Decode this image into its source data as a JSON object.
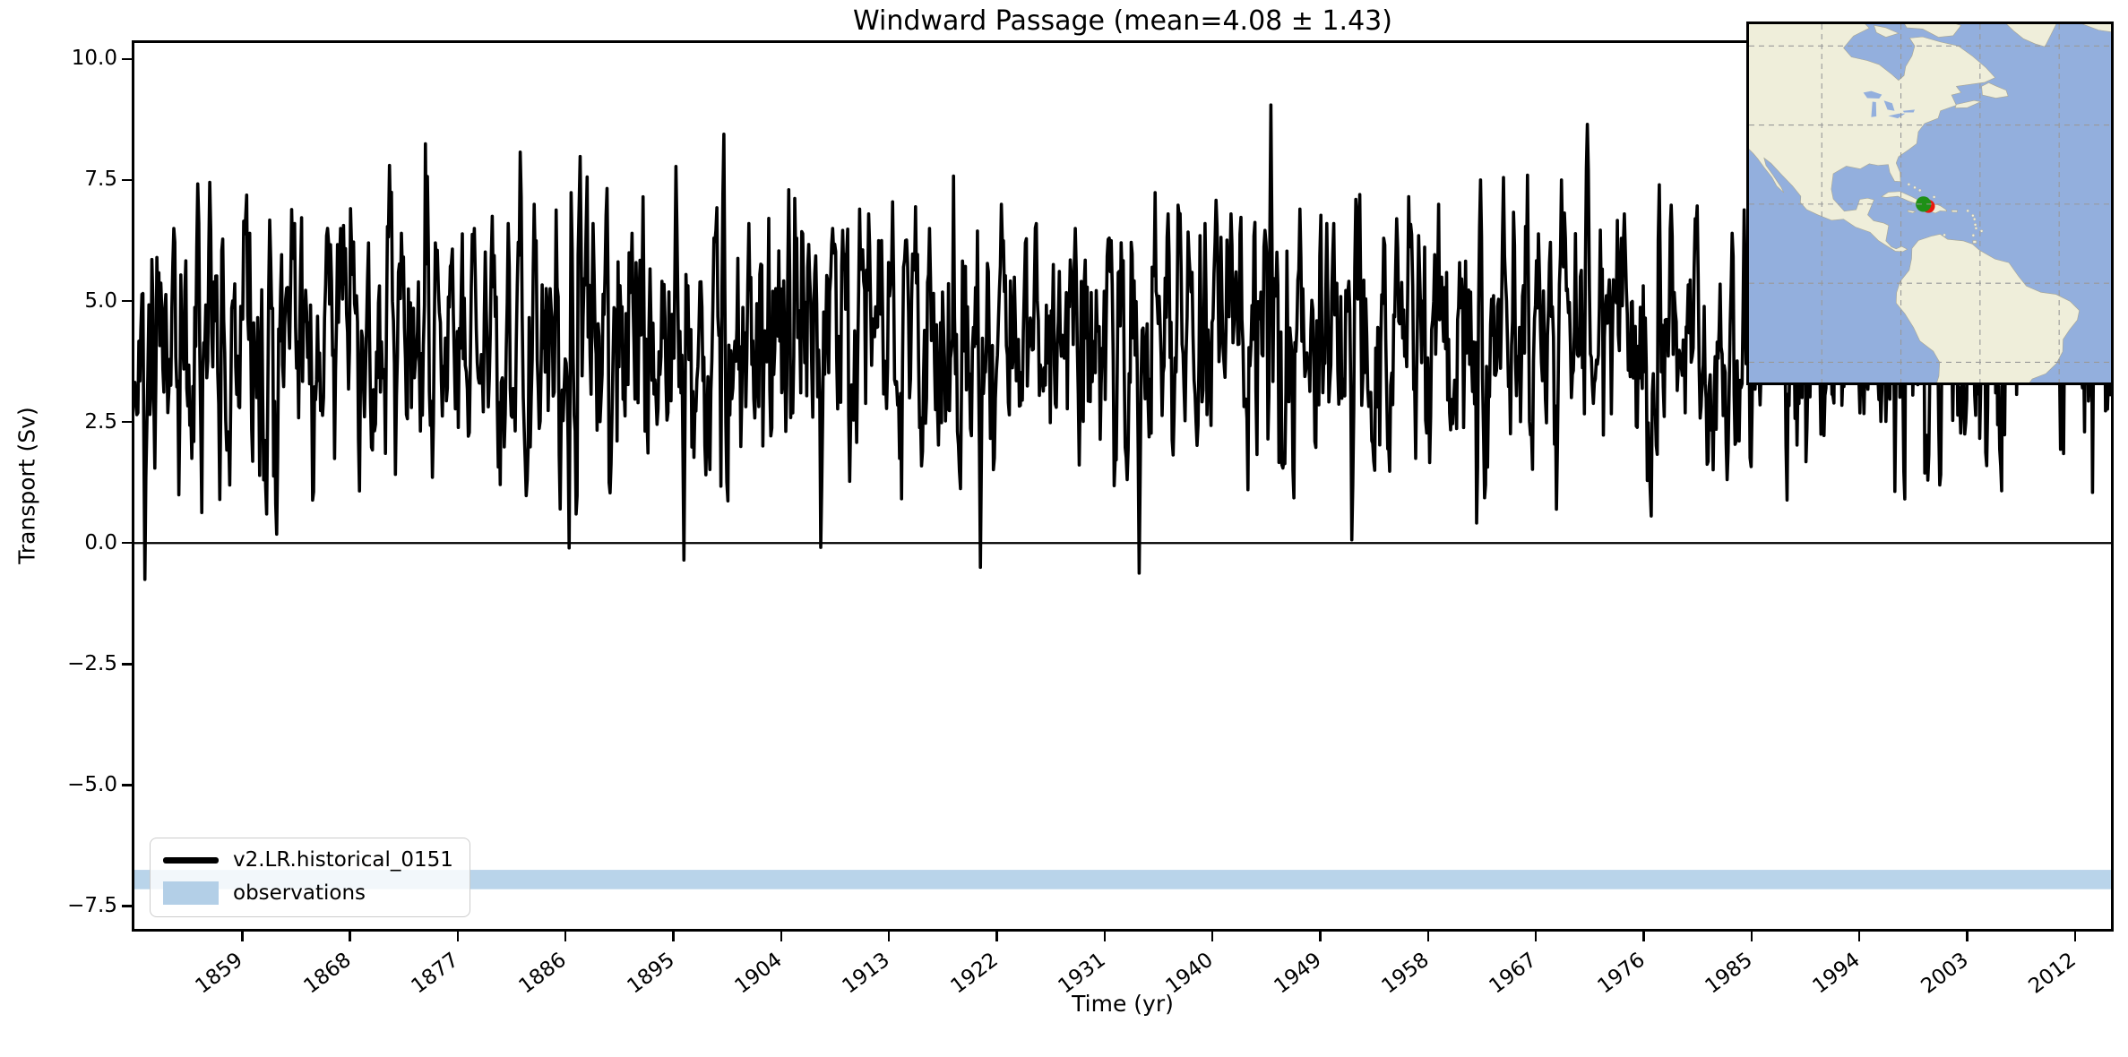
{
  "title": "Windward Passage (mean=4.08 ± 1.43)",
  "axes": {
    "xlabel": "Time (yr)",
    "ylabel": "Transport (Sv)",
    "xlim": [
      1850,
      2015
    ],
    "ylim": [
      -7.97,
      10.33
    ],
    "xticks": [
      {
        "v": 1859,
        "label": "1859"
      },
      {
        "v": 1868,
        "label": "1868"
      },
      {
        "v": 1877,
        "label": "1877"
      },
      {
        "v": 1886,
        "label": "1886"
      },
      {
        "v": 1895,
        "label": "1895"
      },
      {
        "v": 1904,
        "label": "1904"
      },
      {
        "v": 1913,
        "label": "1913"
      },
      {
        "v": 1922,
        "label": "1922"
      },
      {
        "v": 1931,
        "label": "1931"
      },
      {
        "v": 1940,
        "label": "1940"
      },
      {
        "v": 1949,
        "label": "1949"
      },
      {
        "v": 1958,
        "label": "1958"
      },
      {
        "v": 1967,
        "label": "1967"
      },
      {
        "v": 1976,
        "label": "1976"
      },
      {
        "v": 1985,
        "label": "1985"
      },
      {
        "v": 1994,
        "label": "1994"
      },
      {
        "v": 2003,
        "label": "2003"
      },
      {
        "v": 2012,
        "label": "2012"
      }
    ],
    "yticks": [
      {
        "v": 10.0,
        "label": "10.0"
      },
      {
        "v": 7.5,
        "label": "7.5"
      },
      {
        "v": 5.0,
        "label": "5.0"
      },
      {
        "v": 2.5,
        "label": "2.5"
      },
      {
        "v": 0.0,
        "label": "0.0"
      },
      {
        "v": -2.5,
        "label": "−2.5"
      },
      {
        "v": -5.0,
        "label": "−5.0"
      },
      {
        "v": -7.5,
        "label": "−7.5"
      }
    ]
  },
  "legend": {
    "items": [
      {
        "label": "v2.LR.historical_0151",
        "swatch": "line",
        "color": "#000000"
      },
      {
        "label": "observations",
        "swatch": "patch",
        "color": "#b3cfe7"
      }
    ]
  },
  "chart_data": {
    "type": "line",
    "title": "Windward Passage (mean=4.08 ± 1.43)",
    "xlabel": "Time (yr)",
    "ylabel": "Transport (Sv)",
    "xlim": [
      1850,
      2015
    ],
    "ylim": [
      -7.97,
      10.33
    ],
    "grid": false,
    "legend_position": "lower left",
    "series": [
      {
        "name": "v2.LR.historical_0151",
        "color": "#000000",
        "linewidth": 3.6,
        "sampling": "monthly",
        "x_start": 1850,
        "x_end": 2015,
        "mean": 4.08,
        "std": 1.43,
        "generator": {
          "seed": 1337,
          "ar": 0.45,
          "sigma": 1.05,
          "seasonal_min": 0.4,
          "seasonal_max": 1.4
        },
        "notable_extremes": [
          [
            1850.9,
            -0.75
          ],
          [
            1851.9,
            5.9
          ],
          [
            1853.3,
            6.5
          ],
          [
            1855.3,
            7.42
          ],
          [
            1856.3,
            7.45
          ],
          [
            1857.1,
            0.9
          ],
          [
            1859.6,
            6.4
          ],
          [
            1861.0,
            0.6
          ],
          [
            1863.4,
            6.6
          ],
          [
            1866.1,
            6.5
          ],
          [
            1867.2,
            6.5
          ],
          [
            1869.5,
            6.2
          ],
          [
            1872.3,
            6.4
          ],
          [
            1875.1,
            6.2
          ],
          [
            1878.4,
            6.5
          ],
          [
            1881.2,
            6.6
          ],
          [
            1883.4,
            7.0
          ],
          [
            1886.3,
            -0.1
          ],
          [
            1886.9,
            0.6
          ],
          [
            1888.3,
            6.6
          ],
          [
            1891.5,
            6.4
          ],
          [
            1895.2,
            7.78
          ],
          [
            1895.9,
            -0.35
          ],
          [
            1898.4,
            6.3
          ],
          [
            1901.3,
            6.6
          ],
          [
            1904.6,
            7.3
          ],
          [
            1908.3,
            6.5
          ],
          [
            1910.5,
            6.9
          ],
          [
            1913.3,
            7.05
          ],
          [
            1916.4,
            6.5
          ],
          [
            1920.6,
            -0.5
          ],
          [
            1922.4,
            7.0
          ],
          [
            1925.3,
            6.6
          ],
          [
            1928.5,
            6.5
          ],
          [
            1931.4,
            6.3
          ],
          [
            1933.9,
            -0.62
          ],
          [
            1936.3,
            6.8
          ],
          [
            1939.4,
            6.6
          ],
          [
            1941.5,
            6.8
          ],
          [
            1944.9,
            9.05
          ],
          [
            1947.3,
            6.9
          ],
          [
            1949.5,
            6.6
          ],
          [
            1952.3,
            7.2
          ],
          [
            1955.4,
            6.7
          ],
          [
            1958.9,
            7.0
          ],
          [
            1962.4,
            7.5
          ],
          [
            1966.3,
            7.6
          ],
          [
            1969.1,
            7.5
          ],
          [
            1971.3,
            8.65
          ],
          [
            1974.4,
            6.8
          ],
          [
            1977.3,
            7.4
          ],
          [
            1980.3,
            6.7
          ],
          [
            1983.4,
            6.4
          ],
          [
            1986.5,
            6.5
          ],
          [
            1989.4,
            6.4
          ],
          [
            1992.3,
            6.5
          ],
          [
            1995.4,
            6.6
          ],
          [
            1998.3,
            6.7
          ],
          [
            2000.2,
            7.0
          ],
          [
            1999.7,
            1.3
          ],
          [
            2000.7,
            1.2
          ],
          [
            2003.4,
            6.4
          ],
          [
            2004.6,
            1.6
          ],
          [
            2006.3,
            6.6
          ],
          [
            2009.4,
            6.5
          ],
          [
            2012.4,
            6.9
          ]
        ]
      }
    ],
    "reference_lines": [
      {
        "y": 0.0,
        "color": "#000000",
        "linewidth": 2.2
      }
    ],
    "bands": [
      {
        "label": "observations",
        "y_min": -7.15,
        "y_max": -6.75,
        "color": "#b9d4ea"
      }
    ]
  },
  "inset_map": {
    "extent": {
      "lon_min": -118.4,
      "lon_max": -26.9,
      "lat_min": -25.1,
      "lat_max": 65.5
    },
    "gridline_lons": [
      -100,
      -80,
      -60,
      -40
    ],
    "gridline_lats": [
      60,
      40,
      20,
      0,
      -20
    ],
    "marker": {
      "name": "Windward Passage",
      "lon": -74.3,
      "lat": 20.0,
      "green": "#1e9016",
      "red": "#e8190c"
    },
    "colors": {
      "ocean": "#93afdd",
      "land": "#efeeda",
      "coast": "#a9a692",
      "grid": "#999999"
    }
  }
}
